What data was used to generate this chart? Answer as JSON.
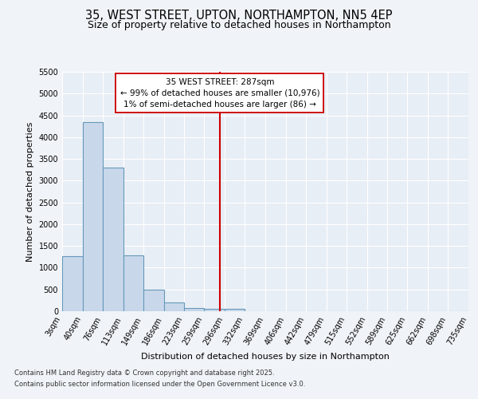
{
  "title_line1": "35, WEST STREET, UPTON, NORTHAMPTON, NN5 4EP",
  "title_line2": "Size of property relative to detached houses in Northampton",
  "xlabel": "Distribution of detached houses by size in Northampton",
  "ylabel": "Number of detached properties",
  "bin_labels": [
    "3sqm",
    "40sqm",
    "76sqm",
    "113sqm",
    "149sqm",
    "186sqm",
    "223sqm",
    "259sqm",
    "296sqm",
    "332sqm",
    "369sqm",
    "406sqm",
    "442sqm",
    "479sqm",
    "515sqm",
    "552sqm",
    "589sqm",
    "625sqm",
    "662sqm",
    "698sqm",
    "735sqm"
  ],
  "bin_edges": [
    3,
    40,
    76,
    113,
    149,
    186,
    223,
    259,
    296,
    332,
    369,
    406,
    442,
    479,
    515,
    552,
    589,
    625,
    662,
    698,
    735
  ],
  "bar_heights": [
    1270,
    4350,
    3300,
    1290,
    500,
    210,
    80,
    60,
    50,
    0,
    0,
    0,
    0,
    0,
    0,
    0,
    0,
    0,
    0,
    0
  ],
  "bar_color": "#c8d8ea",
  "bar_edge_color": "#6699bb",
  "bar_edge_width": 0.8,
  "vline_x": 287,
  "vline_color": "#cc0000",
  "annotation_text": "35 WEST STREET: 287sqm\n← 99% of detached houses are smaller (10,976)\n1% of semi-detached houses are larger (86) →",
  "annotation_box_edge_color": "#cc0000",
  "annotation_box_face_color": "#ffffff",
  "ylim": [
    0,
    5500
  ],
  "yticks": [
    0,
    500,
    1000,
    1500,
    2000,
    2500,
    3000,
    3500,
    4000,
    4500,
    5000,
    5500
  ],
  "background_color": "#f0f4f8",
  "plot_background_color": "#e8eef5",
  "footer_line1": "Contains HM Land Registry data © Crown copyright and database right 2025.",
  "footer_line2": "Contains public sector information licensed under the Open Government Licence v3.0.",
  "title_fontsize": 10.5,
  "subtitle_fontsize": 9,
  "axis_label_fontsize": 8,
  "tick_fontsize": 7,
  "annotation_fontsize": 7.5,
  "footer_fontsize": 6,
  "ylabel_fontsize": 8
}
